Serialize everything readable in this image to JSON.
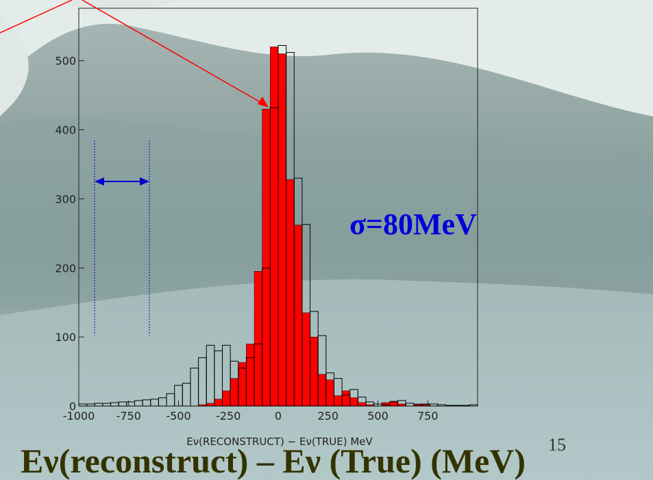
{
  "chart_data": {
    "type": "histogram",
    "annotation": "σ=80MeV",
    "xlabel": "Eν(RECONSTRUCT) − Eν(TRUE) MeV",
    "caption": "Eν(reconstruct) – Eν (True) (MeV)",
    "page_number": "15",
    "bins": [
      -1000,
      -960,
      -920,
      -880,
      -840,
      -800,
      -760,
      -720,
      -680,
      -640,
      -600,
      -560,
      -520,
      -480,
      -440,
      -400,
      -360,
      -320,
      -280,
      -240,
      -200,
      -160,
      -120,
      -80,
      -40,
      0,
      40,
      80,
      120,
      160,
      200,
      240,
      280,
      320,
      360,
      400,
      440,
      480,
      520,
      560,
      600,
      640,
      680,
      720,
      760,
      800,
      840,
      880,
      920,
      960,
      1000
    ],
    "series": [
      {
        "color": "#ff0000",
        "style": "filled",
        "values": [
          0,
          0,
          0,
          0,
          0,
          0,
          0,
          0,
          0,
          0,
          0,
          0,
          0,
          0,
          0,
          2,
          4,
          10,
          22,
          40,
          63,
          90,
          195,
          430,
          520,
          510,
          328,
          262,
          135,
          100,
          46,
          38,
          15,
          22,
          12,
          5,
          2,
          0,
          5,
          7,
          3,
          0,
          3,
          2,
          0,
          0,
          0,
          0,
          0,
          0
        ]
      },
      {
        "color": "#000000",
        "style": "outline",
        "values": [
          3,
          3,
          4,
          4,
          5,
          6,
          6,
          8,
          9,
          10,
          12,
          18,
          30,
          33,
          55,
          70,
          88,
          80,
          88,
          65,
          55,
          70,
          90,
          200,
          432,
          522,
          512,
          330,
          263,
          137,
          102,
          48,
          40,
          16,
          24,
          13,
          6,
          3,
          2,
          6,
          8,
          4,
          2,
          3,
          3,
          2,
          1,
          1,
          1,
          2
        ]
      }
    ],
    "xlim": [
      -1000,
      1000
    ],
    "ylim": [
      0,
      576
    ],
    "xticks": [
      -1000,
      -750,
      -500,
      -250,
      0,
      250,
      500,
      750
    ],
    "yticks": [
      0,
      100,
      200,
      300,
      400,
      500
    ]
  }
}
